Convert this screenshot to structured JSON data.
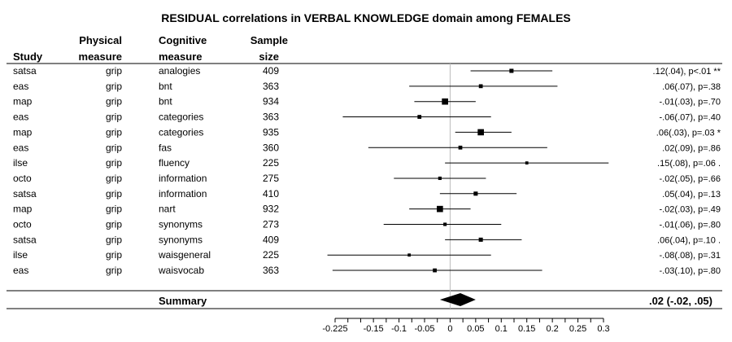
{
  "chart_data": {
    "type": "forest",
    "title": "RESIDUAL correlations in VERBAL KNOWLEDGE domain among FEMALES",
    "columns": {
      "study": "Study",
      "physical": [
        "Physical",
        "measure"
      ],
      "cognitive": [
        "Cognitive",
        "measure"
      ],
      "sample": [
        "Sample",
        "size"
      ]
    },
    "rows": [
      {
        "study": "satsa",
        "physical": "grip",
        "cognitive": "analogies",
        "n": "409",
        "est": 0.12,
        "lo": 0.04,
        "hi": 0.2,
        "stat": ".12(.04), p<.01 **"
      },
      {
        "study": "eas",
        "physical": "grip",
        "cognitive": "bnt",
        "n": "363",
        "est": 0.06,
        "lo": -0.08,
        "hi": 0.21,
        "stat": ".06(.07), p=.38"
      },
      {
        "study": "map",
        "physical": "grip",
        "cognitive": "bnt",
        "n": "934",
        "est": -0.01,
        "lo": -0.07,
        "hi": 0.05,
        "stat": "-.01(.03), p=.70"
      },
      {
        "study": "eas",
        "physical": "grip",
        "cognitive": "categories",
        "n": "363",
        "est": -0.06,
        "lo": -0.21,
        "hi": 0.08,
        "stat": "-.06(.07), p=.40"
      },
      {
        "study": "map",
        "physical": "grip",
        "cognitive": "categories",
        "n": "935",
        "est": 0.06,
        "lo": 0.01,
        "hi": 0.12,
        "stat": ".06(.03), p=.03 *"
      },
      {
        "study": "eas",
        "physical": "grip",
        "cognitive": "fas",
        "n": "360",
        "est": 0.02,
        "lo": -0.16,
        "hi": 0.19,
        "stat": ".02(.09), p=.86"
      },
      {
        "study": "ilse",
        "physical": "grip",
        "cognitive": "fluency",
        "n": "225",
        "est": 0.15,
        "lo": -0.01,
        "hi": 0.31,
        "stat": ".15(.08), p=.06 ."
      },
      {
        "study": "octo",
        "physical": "grip",
        "cognitive": "information",
        "n": "275",
        "est": -0.02,
        "lo": -0.11,
        "hi": 0.07,
        "stat": "-.02(.05), p=.66"
      },
      {
        "study": "satsa",
        "physical": "grip",
        "cognitive": "information",
        "n": "410",
        "est": 0.05,
        "lo": -0.02,
        "hi": 0.13,
        "stat": ".05(.04), p=.13"
      },
      {
        "study": "map",
        "physical": "grip",
        "cognitive": "nart",
        "n": "932",
        "est": -0.02,
        "lo": -0.08,
        "hi": 0.04,
        "stat": "-.02(.03), p=.49"
      },
      {
        "study": "octo",
        "physical": "grip",
        "cognitive": "synonyms",
        "n": "273",
        "est": -0.01,
        "lo": -0.13,
        "hi": 0.1,
        "stat": "-.01(.06), p=.80"
      },
      {
        "study": "satsa",
        "physical": "grip",
        "cognitive": "synonyms",
        "n": "409",
        "est": 0.06,
        "lo": -0.01,
        "hi": 0.14,
        "stat": ".06(.04), p=.10 ."
      },
      {
        "study": "ilse",
        "physical": "grip",
        "cognitive": "waisgeneral",
        "n": "225",
        "est": -0.08,
        "lo": -0.24,
        "hi": 0.08,
        "stat": "-.08(.08), p=.31"
      },
      {
        "study": "eas",
        "physical": "grip",
        "cognitive": "waisvocab",
        "n": "363",
        "est": -0.03,
        "lo": -0.23,
        "hi": 0.18,
        "stat": "-.03(.10), p=.80"
      }
    ],
    "summary": {
      "label": "Summary",
      "est": 0.02,
      "lo": -0.02,
      "hi": 0.05,
      "stat": ".02 (-.02, .05)"
    },
    "xlim": [
      -0.225,
      0.3
    ],
    "ticks": [
      -0.225,
      -0.15,
      -0.1,
      -0.05,
      0,
      0.05,
      0.1,
      0.15,
      0.2,
      0.25,
      0.3
    ],
    "tick_labels": [
      "-0.225",
      "-0.15",
      "-0.1",
      "-0.05",
      "0",
      "0.05",
      "0.1",
      "0.15",
      "0.2",
      "0.25",
      "0.3"
    ],
    "minor_tick_step": 0.025,
    "colors": {
      "line": "#000000",
      "zero_line": "#bbbbbb"
    }
  }
}
